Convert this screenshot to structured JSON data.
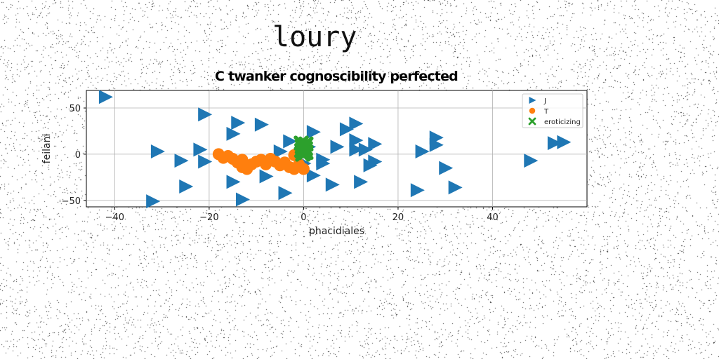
{
  "page": {
    "title": "loury"
  },
  "chart_data": {
    "type": "scatter",
    "title": "C twanker cognoscibility perfected",
    "xlabel": "phacidiales",
    "ylabel": "feilani",
    "xlim": [
      -46,
      60
    ],
    "ylim": [
      -57,
      69
    ],
    "xticks": [
      -40,
      -20,
      0,
      20,
      40
    ],
    "xtick_labels": [
      "−40",
      "−20",
      "0",
      "20",
      "40"
    ],
    "yticks": [
      -50,
      0,
      50
    ],
    "ytick_labels": [
      "−50",
      "0",
      "50"
    ],
    "grid": true,
    "legend_position": "top-right",
    "series": [
      {
        "name": "J",
        "marker": "triangle-right",
        "color": "#1f77b4",
        "points": [
          [
            -42,
            62
          ],
          [
            -21,
            43
          ],
          [
            -14,
            34
          ],
          [
            -15,
            22
          ],
          [
            -9,
            32
          ],
          [
            -31,
            3
          ],
          [
            -26,
            -7
          ],
          [
            -22,
            5
          ],
          [
            -21,
            -8
          ],
          [
            -25,
            -35
          ],
          [
            -32,
            -51
          ],
          [
            -15,
            -30
          ],
          [
            -13,
            -49
          ],
          [
            -8,
            -24
          ],
          [
            -4,
            -42
          ],
          [
            -3,
            14
          ],
          [
            -5,
            3
          ],
          [
            2,
            24
          ],
          [
            1,
            8
          ],
          [
            0,
            -10
          ],
          [
            2,
            -23
          ],
          [
            4,
            -10
          ],
          [
            4,
            -6
          ],
          [
            6,
            -33
          ],
          [
            7,
            8
          ],
          [
            9,
            27
          ],
          [
            11,
            15
          ],
          [
            11,
            33
          ],
          [
            11,
            5
          ],
          [
            13,
            5
          ],
          [
            15,
            11
          ],
          [
            14,
            -12
          ],
          [
            15,
            -8
          ],
          [
            12,
            -30
          ],
          [
            25,
            3
          ],
          [
            28,
            18
          ],
          [
            28,
            10
          ],
          [
            30,
            -15
          ],
          [
            32,
            -36
          ],
          [
            24,
            -39
          ],
          [
            48,
            -7
          ],
          [
            53,
            12
          ],
          [
            55,
            13
          ]
        ]
      },
      {
        "name": "T",
        "marker": "circle",
        "color": "#ff7f0e",
        "points": [
          [
            -18,
            0
          ],
          [
            -17,
            -4
          ],
          [
            -16,
            -2
          ],
          [
            -15,
            -5
          ],
          [
            -14,
            -9
          ],
          [
            -13,
            -14
          ],
          [
            -12,
            -16
          ],
          [
            -11,
            -11
          ],
          [
            -10,
            -8
          ],
          [
            -9,
            -6
          ],
          [
            -8,
            -11
          ],
          [
            -7,
            -5
          ],
          [
            -6,
            -8
          ],
          [
            -5,
            -12
          ],
          [
            -4,
            -9
          ],
          [
            -3,
            -14
          ],
          [
            -2,
            -16
          ],
          [
            -1,
            -11
          ],
          [
            -2,
            -1
          ],
          [
            0,
            -16
          ],
          [
            -13,
            -6
          ]
        ]
      },
      {
        "name": "eroticizing",
        "marker": "x",
        "color": "#2ca02c",
        "points": [
          [
            -0.5,
            12
          ],
          [
            0.5,
            11
          ],
          [
            -0.3,
            8
          ],
          [
            0.4,
            6
          ],
          [
            -0.4,
            4
          ],
          [
            0.5,
            2
          ],
          [
            0,
            1
          ],
          [
            -0.2,
            0
          ]
        ]
      }
    ]
  }
}
